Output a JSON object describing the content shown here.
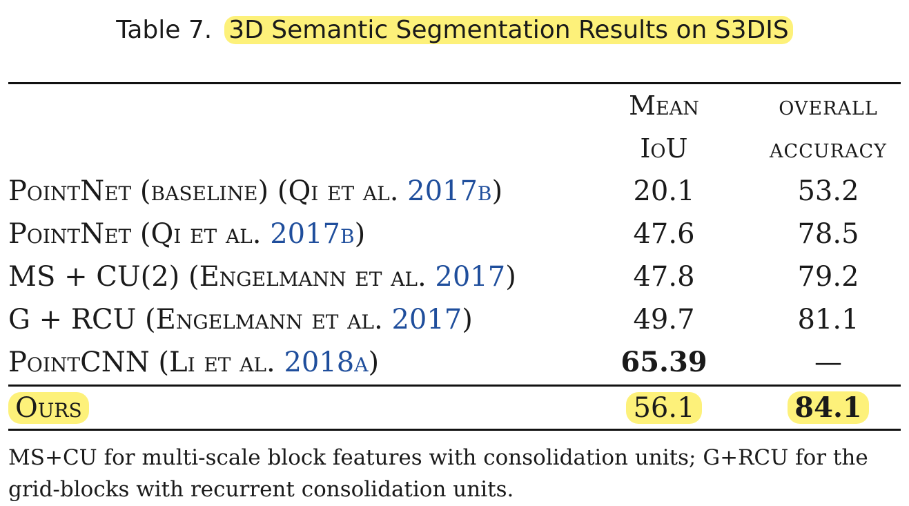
{
  "caption": {
    "label": "Table 7.",
    "title": "3D Semantic Segmentation Results on S3DIS"
  },
  "columns": {
    "mean_iou": [
      "Mean",
      "IoU"
    ],
    "overall_accuracy": [
      "overall",
      "accuracy"
    ]
  },
  "rows": [
    {
      "method": "PointNet (baseline) (Qi et al. ",
      "cite_year": "2017",
      "cite_suffix": "b",
      "close": ")",
      "mean_iou": "20.1",
      "overall_accuracy": "53.2"
    },
    {
      "method": "PointNet (Qi et al. ",
      "cite_year": "2017",
      "cite_suffix": "b",
      "close": ")",
      "mean_iou": "47.6",
      "overall_accuracy": "78.5"
    },
    {
      "method": "MS + CU(2) (Engelmann et al. ",
      "cite_year": "2017",
      "cite_suffix": "",
      "close": ")",
      "mean_iou": "47.8",
      "overall_accuracy": "79.2"
    },
    {
      "method": "G + RCU (Engelmann et al. ",
      "cite_year": "2017",
      "cite_suffix": "",
      "close": ")",
      "mean_iou": "49.7",
      "overall_accuracy": "81.1"
    },
    {
      "method": "PointCNN (Li et al. ",
      "cite_year": "2018",
      "cite_suffix": "a",
      "close": ")",
      "mean_iou": "65.39",
      "overall_accuracy": "—"
    }
  ],
  "ours": {
    "method": "Ours",
    "mean_iou": "56.1",
    "overall_accuracy": "84.1"
  },
  "footnote": "MS+CU for multi-scale block features with consolidation units; G+RCU for the grid-blocks with recurrent consolidation units.",
  "colors": {
    "highlight": "#fdf17a",
    "citation": "#1f4e9c"
  }
}
